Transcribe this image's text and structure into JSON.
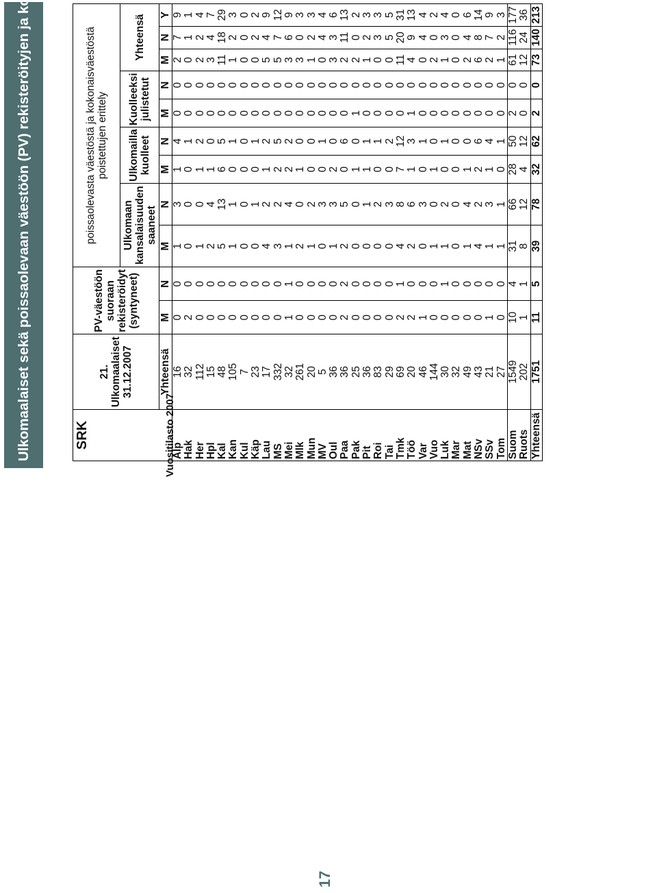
{
  "page_title": "Ulkomaalaiset sekä poissaolevaan väestöön (PV) rekisteröityjen ja kokonaisväestöstä poistettujen erittely",
  "page_number": "17",
  "source_note": "Vuositilasto 2007",
  "header": {
    "srk": "SRK",
    "col_foreign": [
      "21.",
      "Ulkomaalaiset",
      "31.12.2007"
    ],
    "col_pv": [
      "PV-väestöön",
      "suoraan",
      "rekisteröidyt",
      "(syntyneet)"
    ],
    "group_title": "poissaolevasta väestöstä ja kokonaisväestöstä poistettujen erittely",
    "sub_citizenship": [
      "Ulkomaan",
      "kansalaisuuden",
      "saaneet"
    ],
    "sub_died_abroad": [
      "Ulkomailla",
      "kuolleet"
    ],
    "sub_declared_dead": [
      "Kuolleeksi",
      "julistetut"
    ],
    "sub_total": "Yhteensä",
    "lbl_total": "Yhteensä",
    "lbl_m": "M",
    "lbl_n": "N",
    "lbl_y": "Y"
  },
  "rows": [
    {
      "name": "Alp",
      "v": [
        16,
        0,
        0,
        1,
        3,
        1,
        4,
        0,
        0,
        2,
        7,
        9
      ]
    },
    {
      "name": "Hak",
      "v": [
        32,
        2,
        0,
        0,
        0,
        0,
        1,
        0,
        0,
        0,
        1,
        1
      ]
    },
    {
      "name": "Her",
      "v": [
        112,
        0,
        0,
        1,
        0,
        1,
        2,
        0,
        0,
        2,
        2,
        4
      ]
    },
    {
      "name": "Hpl",
      "v": [
        15,
        0,
        0,
        2,
        4,
        1,
        0,
        0,
        0,
        3,
        4,
        7
      ]
    },
    {
      "name": "Kal",
      "v": [
        48,
        0,
        0,
        5,
        13,
        6,
        5,
        0,
        0,
        11,
        18,
        29
      ]
    },
    {
      "name": "Kan",
      "v": [
        105,
        0,
        0,
        1,
        1,
        0,
        1,
        0,
        0,
        1,
        2,
        3
      ]
    },
    {
      "name": "Kul",
      "v": [
        7,
        0,
        0,
        0,
        0,
        0,
        0,
        0,
        0,
        0,
        0,
        0
      ]
    },
    {
      "name": "Käp",
      "v": [
        23,
        0,
        0,
        0,
        1,
        0,
        1,
        0,
        0,
        0,
        2,
        2
      ]
    },
    {
      "name": "Lau",
      "v": [
        17,
        0,
        0,
        4,
        2,
        1,
        2,
        0,
        0,
        5,
        4,
        9
      ]
    },
    {
      "name": "MS",
      "v": [
        332,
        0,
        0,
        3,
        2,
        2,
        5,
        0,
        0,
        5,
        7,
        12
      ]
    },
    {
      "name": "Mei",
      "v": [
        32,
        1,
        1,
        1,
        4,
        2,
        2,
        0,
        0,
        3,
        6,
        9
      ]
    },
    {
      "name": "Mlk",
      "v": [
        261,
        0,
        0,
        2,
        0,
        1,
        0,
        0,
        0,
        3,
        0,
        3
      ]
    },
    {
      "name": "Mun",
      "v": [
        20,
        0,
        0,
        1,
        2,
        0,
        0,
        0,
        0,
        1,
        2,
        3
      ]
    },
    {
      "name": "MV",
      "v": [
        5,
        0,
        0,
        0,
        3,
        0,
        1,
        0,
        0,
        0,
        4,
        4
      ]
    },
    {
      "name": "Oul",
      "v": [
        36,
        0,
        0,
        1,
        3,
        2,
        0,
        0,
        0,
        3,
        3,
        6
      ]
    },
    {
      "name": "Paa",
      "v": [
        36,
        2,
        2,
        2,
        5,
        0,
        6,
        0,
        0,
        2,
        11,
        13
      ]
    },
    {
      "name": "Pak",
      "v": [
        25,
        0,
        0,
        0,
        0,
        1,
        0,
        1,
        0,
        2,
        0,
        2
      ]
    },
    {
      "name": "Pit",
      "v": [
        36,
        0,
        0,
        0,
        1,
        1,
        1,
        0,
        0,
        1,
        2,
        3
      ]
    },
    {
      "name": "Roi",
      "v": [
        83,
        0,
        0,
        0,
        2,
        0,
        1,
        0,
        0,
        0,
        3,
        3
      ]
    },
    {
      "name": "Tai",
      "v": [
        29,
        0,
        0,
        0,
        3,
        0,
        2,
        0,
        0,
        0,
        5,
        5
      ]
    },
    {
      "name": "Tmk",
      "v": [
        69,
        2,
        1,
        4,
        8,
        7,
        12,
        0,
        0,
        11,
        20,
        31
      ]
    },
    {
      "name": "Töö",
      "v": [
        20,
        2,
        0,
        2,
        6,
        1,
        3,
        1,
        0,
        4,
        9,
        13
      ]
    },
    {
      "name": "Var",
      "v": [
        46,
        1,
        0,
        0,
        3,
        0,
        1,
        0,
        0,
        0,
        4,
        4
      ]
    },
    {
      "name": "Vuo",
      "v": [
        144,
        0,
        0,
        1,
        0,
        1,
        0,
        0,
        0,
        2,
        0,
        2
      ]
    },
    {
      "name": "Luk",
      "v": [
        30,
        0,
        1,
        1,
        2,
        0,
        1,
        0,
        0,
        1,
        3,
        4
      ]
    },
    {
      "name": "Mar",
      "v": [
        32,
        0,
        0,
        0,
        0,
        0,
        0,
        0,
        0,
        0,
        0,
        0
      ]
    },
    {
      "name": "Mat",
      "v": [
        49,
        0,
        0,
        1,
        4,
        1,
        0,
        0,
        0,
        2,
        4,
        6
      ]
    },
    {
      "name": "NSv",
      "v": [
        43,
        0,
        0,
        4,
        2,
        2,
        6,
        0,
        0,
        6,
        8,
        14
      ]
    },
    {
      "name": "SSv",
      "v": [
        21,
        1,
        0,
        1,
        3,
        1,
        4,
        0,
        0,
        2,
        7,
        9
      ]
    },
    {
      "name": "Tom",
      "v": [
        27,
        0,
        0,
        1,
        1,
        0,
        1,
        0,
        0,
        1,
        2,
        3
      ]
    }
  ],
  "summary_rows": [
    {
      "name": "Suom",
      "v": [
        1549,
        10,
        4,
        31,
        66,
        28,
        50,
        2,
        0,
        61,
        116,
        177
      ]
    },
    {
      "name": "Ruots",
      "v": [
        202,
        1,
        1,
        8,
        12,
        4,
        12,
        0,
        0,
        12,
        24,
        36
      ]
    }
  ],
  "total_row": {
    "name": "Yhteensä",
    "v": [
      1751,
      11,
      5,
      39,
      78,
      32,
      62,
      2,
      0,
      73,
      140,
      213
    ]
  }
}
